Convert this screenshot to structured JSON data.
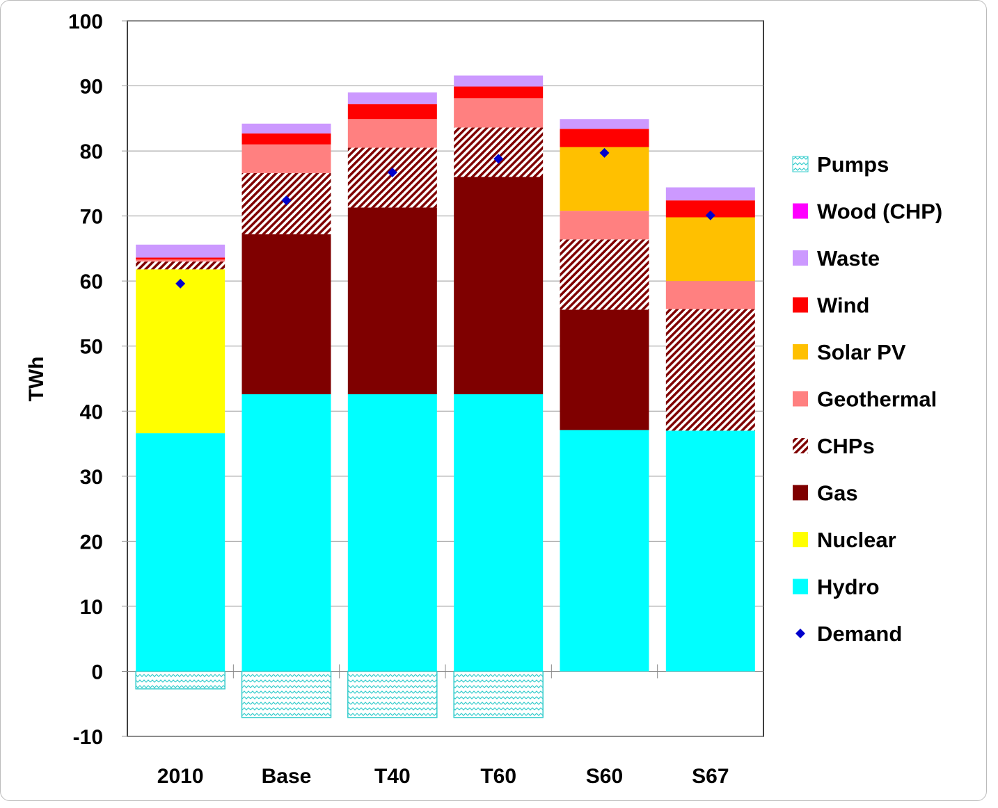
{
  "chart_data": {
    "type": "bar",
    "stacked": true,
    "title": "",
    "xlabel": "",
    "ylabel": "TWh",
    "ylim": [
      -10,
      100
    ],
    "yticks": [
      -10,
      0,
      10,
      20,
      30,
      40,
      50,
      60,
      70,
      80,
      90,
      100
    ],
    "grid": true,
    "legend_position": "right",
    "categories": [
      "2010",
      "Base",
      "T40",
      "T60",
      "S60",
      "S67"
    ],
    "series": [
      {
        "name": "Hydro",
        "color": "#00FFFF",
        "values": [
          36.6,
          42.6,
          42.6,
          42.6,
          37.1,
          37.0
        ]
      },
      {
        "name": "Nuclear",
        "color": "#FFFF00",
        "values": [
          25.2,
          0,
          0,
          0,
          0,
          0
        ]
      },
      {
        "name": "Gas",
        "color": "#7F0000",
        "values": [
          0,
          24.6,
          28.7,
          33.4,
          18.5,
          0
        ]
      },
      {
        "name": "CHPs",
        "color": "#7F0000",
        "pattern": "diagonal-stripes",
        "values": [
          1.2,
          9.4,
          9.2,
          7.6,
          10.8,
          18.7
        ]
      },
      {
        "name": "Geothermal",
        "color": "#FF8080",
        "values": [
          0.3,
          4.4,
          4.4,
          4.5,
          4.4,
          4.3
        ]
      },
      {
        "name": "Solar PV",
        "color": "#FFC000",
        "values": [
          0,
          0,
          0,
          0,
          9.8,
          9.8
        ]
      },
      {
        "name": "Wind",
        "color": "#FF0000",
        "values": [
          0.3,
          1.7,
          2.3,
          1.8,
          2.8,
          2.6
        ]
      },
      {
        "name": "Waste",
        "color": "#CC99FF",
        "values": [
          2.0,
          1.5,
          1.8,
          1.7,
          1.5,
          2.0
        ]
      },
      {
        "name": "Wood (CHP)",
        "color": "#FF00FF",
        "values": [
          0,
          0,
          0,
          0,
          0,
          0
        ]
      },
      {
        "name": "Pumps",
        "color": "#33CCCC",
        "pattern": "waves",
        "values": [
          -2.7,
          -7.1,
          -7.1,
          -7.1,
          0,
          0
        ]
      }
    ],
    "demand": {
      "name": "Demand",
      "color": "#0000CC",
      "marker": "diamond",
      "values": [
        59.6,
        72.4,
        76.7,
        78.8,
        79.7,
        70.1
      ]
    },
    "legend_order": [
      "Pumps",
      "Wood (CHP)",
      "Waste",
      "Wind",
      "Solar PV",
      "Geothermal",
      "CHPs",
      "Gas",
      "Nuclear",
      "Hydro",
      "Demand"
    ]
  }
}
